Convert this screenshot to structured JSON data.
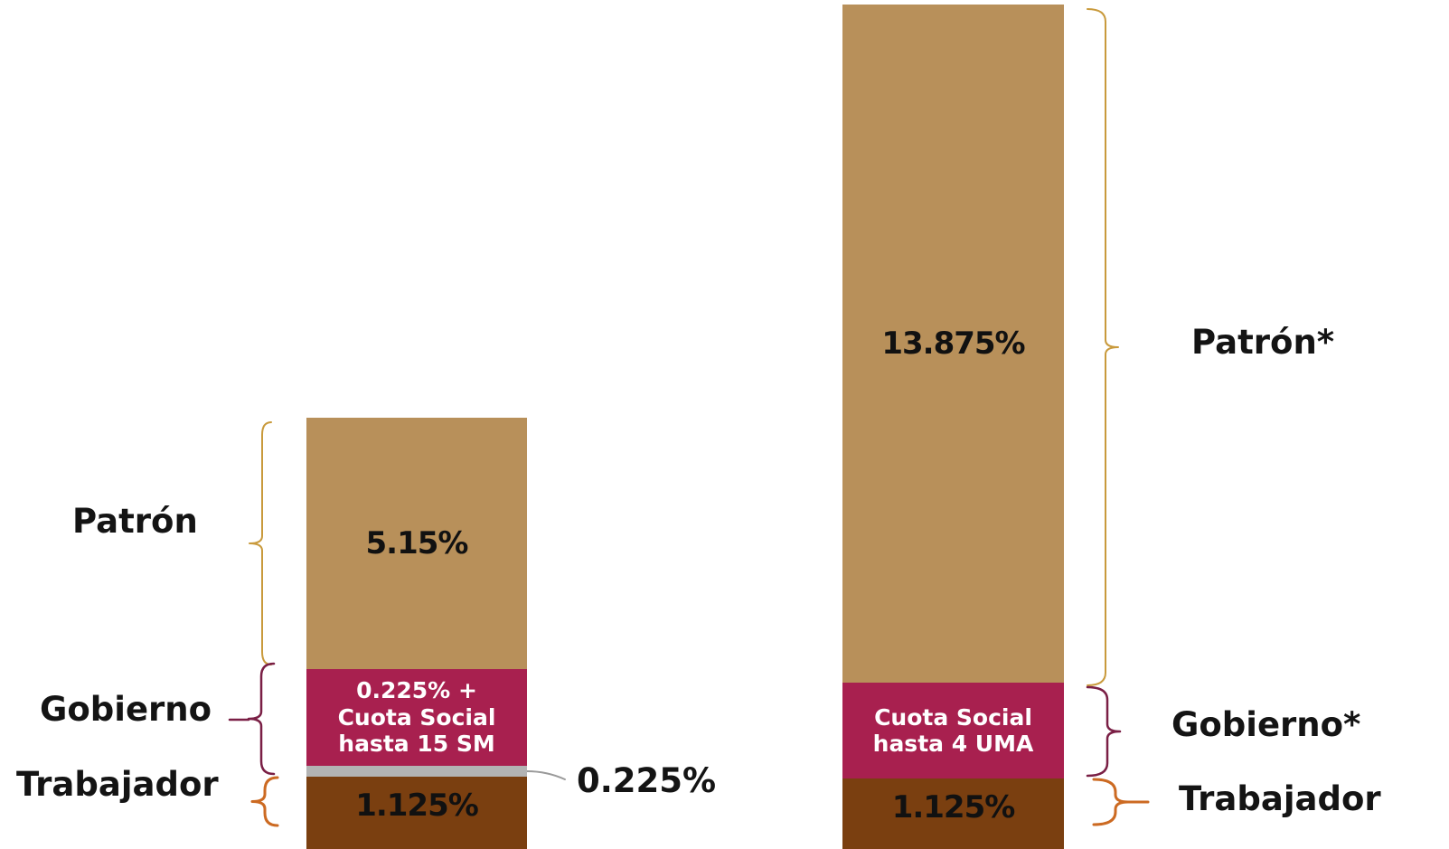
{
  "chart_data": {
    "type": "bar",
    "stacked": true,
    "colors": {
      "patron": "#b8905a",
      "gobierno": "#a8204f",
      "trabajador": "#7a3f10",
      "separator": "#b3b3b3",
      "brace_patron": "#c99a3c",
      "brace_gobierno": "#7a1f45",
      "brace_trabajador": "#cc6a22"
    },
    "bars": [
      {
        "segments": [
          {
            "key": "trabajador",
            "value": 1.125,
            "label": "1.125%"
          },
          {
            "key": "separator",
            "value": 0.225
          },
          {
            "key": "gobierno",
            "label": "0.225% +\nCuota Social\nhasta 15 SM"
          },
          {
            "key": "patron",
            "value": 5.15,
            "label": "5.15%"
          }
        ],
        "side_labels": {
          "patron": "Patrón",
          "gobierno": "Gobierno",
          "trabajador": "Trabajador",
          "separator": "0.225%"
        }
      },
      {
        "segments": [
          {
            "key": "trabajador",
            "value": 1.125,
            "label": "1.125%"
          },
          {
            "key": "gobierno",
            "label": "Cuota Social\nhasta 4 UMA"
          },
          {
            "key": "patron",
            "value": 13.875,
            "label": "13.875%"
          }
        ],
        "side_labels": {
          "patron": "Patrón*",
          "gobierno": "Gobierno*",
          "trabajador": "Trabajador"
        }
      }
    ]
  }
}
